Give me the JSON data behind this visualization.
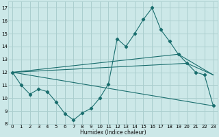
{
  "title": "",
  "xlabel": "Humidex (Indice chaleur)",
  "bg_color": "#cce8e8",
  "line_color": "#1a6e6e",
  "grid_color": "#aacece",
  "xlim": [
    -0.5,
    23.5
  ],
  "ylim": [
    8,
    17.5
  ],
  "yticks": [
    8,
    9,
    10,
    11,
    12,
    13,
    14,
    15,
    16,
    17
  ],
  "xticks": [
    0,
    1,
    2,
    3,
    4,
    5,
    6,
    7,
    8,
    9,
    10,
    11,
    12,
    13,
    14,
    15,
    16,
    17,
    18,
    19,
    20,
    21,
    22,
    23
  ],
  "main_line": {
    "x": [
      0,
      1,
      2,
      3,
      4,
      5,
      6,
      7,
      8,
      9,
      10,
      11,
      12,
      13,
      14,
      15,
      16,
      17,
      18,
      19,
      20,
      21,
      22,
      23
    ],
    "y": [
      12.0,
      11.0,
      10.3,
      10.7,
      10.5,
      9.7,
      8.8,
      8.3,
      8.85,
      9.2,
      10.0,
      11.1,
      14.6,
      14.0,
      15.0,
      16.1,
      17.0,
      15.3,
      14.4,
      13.4,
      12.7,
      12.0,
      11.8,
      9.4
    ]
  },
  "straight_lines": [
    {
      "x": [
        0,
        23
      ],
      "y": [
        12.0,
        9.4
      ]
    },
    {
      "x": [
        0,
        20,
        23
      ],
      "y": [
        12.0,
        12.7,
        11.8
      ]
    },
    {
      "x": [
        0,
        19,
        23
      ],
      "y": [
        12.0,
        13.4,
        11.8
      ]
    }
  ]
}
